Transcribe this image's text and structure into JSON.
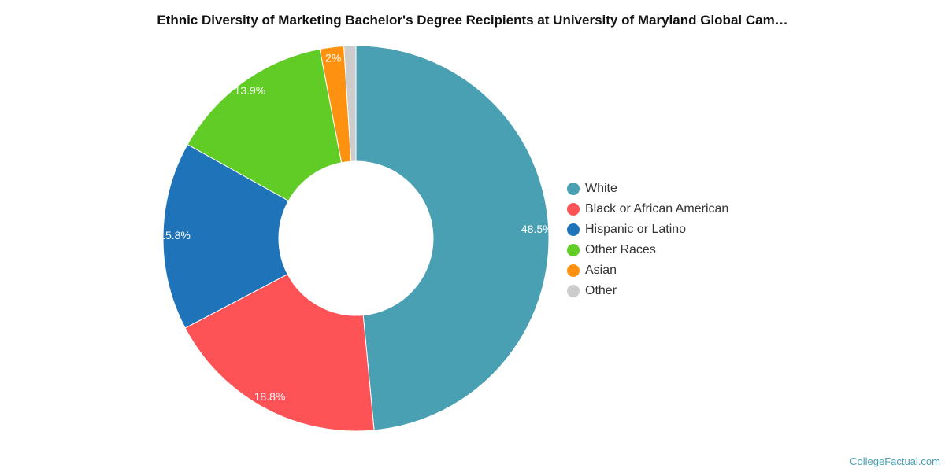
{
  "chart_data": {
    "type": "pie",
    "title": "Ethnic Diversity of Marketing Bachelor's Degree Recipients at University of Maryland Global Cam…",
    "categories": [
      "White",
      "Black or African American",
      "Hispanic or Latino",
      "Other Races",
      "Asian",
      "Other"
    ],
    "values": [
      48.5,
      18.8,
      15.8,
      13.9,
      2.0,
      1.0
    ],
    "value_labels": [
      "48.5%",
      "18.8%",
      "15.8%",
      "13.9%",
      "2%",
      ""
    ],
    "colors": [
      "#4aa0b3",
      "#fe5356",
      "#1f73b8",
      "#62cc26",
      "#fe9210",
      "#cccccc"
    ],
    "donut": true,
    "legend_position": "right"
  },
  "watermark": "CollegeFactual.com"
}
